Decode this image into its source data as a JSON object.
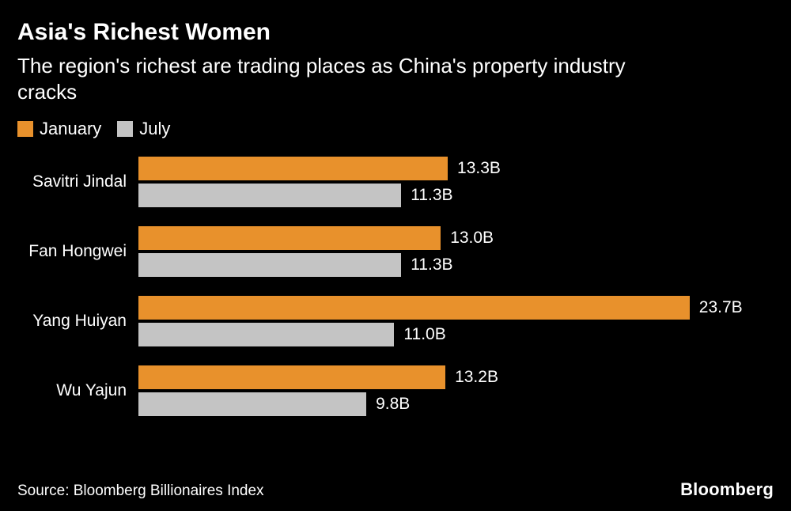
{
  "chart_data": {
    "type": "bar",
    "orientation": "horizontal",
    "title": "Asia's Richest Women",
    "subtitle": "The region's richest are trading places as China's property industry\ncracks",
    "categories": [
      "Savitri Jindal",
      "Fan Hongwei",
      "Yang Huiyan",
      "Wu Yajun"
    ],
    "series": [
      {
        "name": "January",
        "color": "#E8912C",
        "values": [
          13.3,
          13.0,
          23.7,
          13.2
        ],
        "labels": [
          "13.3B",
          "13.0B",
          "23.7B",
          "13.2B"
        ]
      },
      {
        "name": "July",
        "color": "#C4C4C4",
        "values": [
          11.3,
          11.3,
          11.0,
          9.8
        ],
        "labels": [
          "11.3B",
          "11.3B",
          "11.0B",
          "9.8B"
        ]
      }
    ],
    "xlim": [
      0,
      23.7
    ],
    "value_suffix": "B",
    "legend_position": "top-left",
    "grid": false
  },
  "footer": {
    "source": "Source: Bloomberg Billionaires Index",
    "logo": "Bloomberg"
  },
  "colors": {
    "background": "#000000",
    "text": "#FFFFFF",
    "january": "#E8912C",
    "july": "#C4C4C4"
  }
}
